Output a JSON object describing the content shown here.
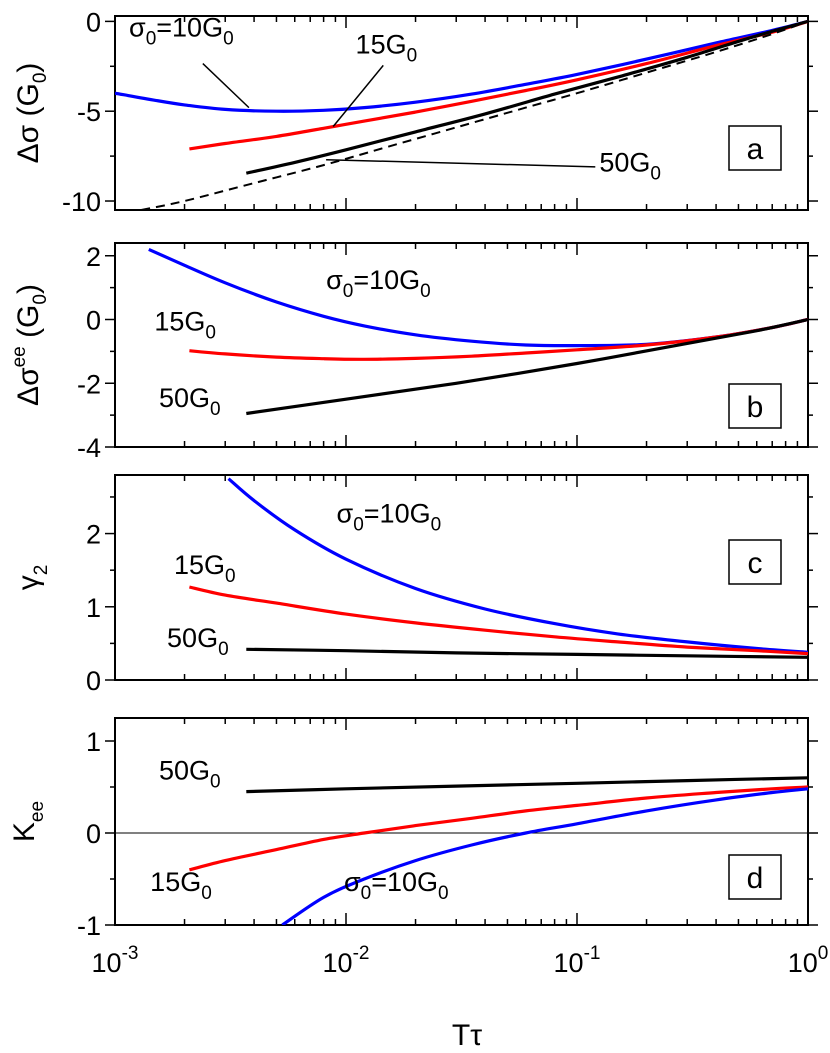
{
  "chart_data": {
    "type": "line",
    "xscale": "log",
    "xlim": [
      0.001,
      1
    ],
    "x_tick_labels": [
      {
        "base": "10",
        "exp": "-3"
      },
      {
        "base": "10",
        "exp": "-2"
      },
      {
        "base": "10",
        "exp": "-1"
      },
      {
        "base": "10",
        "exp": "0"
      }
    ],
    "x_ticks": [
      0.001,
      0.01,
      0.1,
      1
    ],
    "xlabel": "Tτ",
    "colors": {
      "blue": "#0000ff",
      "red": "#ff0000",
      "black": "#000000"
    },
    "panels": [
      {
        "id": "a",
        "letter": "a",
        "ylabel": {
          "main": "Δσ",
          "sup": "",
          "unit": "(G",
          "unit_sub": "0",
          "unit_close": ")"
        },
        "ylim": [
          -10.5,
          0.3
        ],
        "y_ticks": [
          0,
          -5,
          -10
        ],
        "y_tick_labels": [
          "0",
          "-5",
          "-10"
        ],
        "series": [
          {
            "color": "blue",
            "dash": false,
            "x": [
              0.001,
              0.0015,
              0.002,
              0.003,
              0.005,
              0.008,
              0.012,
              0.02,
              0.035,
              0.06,
              0.1,
              0.2,
              0.4,
              0.7,
              1.0
            ],
            "y": [
              -4.0,
              -4.4,
              -4.65,
              -4.9,
              -5.0,
              -4.95,
              -4.8,
              -4.5,
              -4.05,
              -3.5,
              -2.95,
              -2.1,
              -1.2,
              -0.5,
              0.0
            ]
          },
          {
            "color": "red",
            "dash": false,
            "x": [
              0.0021,
              0.003,
              0.005,
              0.008,
              0.012,
              0.02,
              0.035,
              0.06,
              0.1,
              0.2,
              0.4,
              0.7,
              1.0
            ],
            "y": [
              -7.1,
              -6.8,
              -6.4,
              -5.95,
              -5.55,
              -5.05,
              -4.45,
              -3.85,
              -3.25,
              -2.35,
              -1.35,
              -0.6,
              0.0
            ]
          },
          {
            "color": "black",
            "dash": false,
            "x": [
              0.0037,
              0.006,
              0.01,
              0.02,
              0.04,
              0.08,
              0.15,
              0.3,
              0.6,
              1.0
            ],
            "y": [
              -8.45,
              -7.85,
              -7.15,
              -6.15,
              -5.15,
              -4.05,
              -3.1,
              -2.0,
              -0.8,
              0.0
            ]
          },
          {
            "color": "black",
            "dash": true,
            "x": [
              0.0013,
              0.002,
              0.004,
              0.008,
              0.015,
              0.03,
              0.06,
              0.1,
              0.2,
              0.4,
              0.7,
              1.0
            ],
            "y": [
              -10.5,
              -10.0,
              -9.0,
              -8.0,
              -7.0,
              -5.9,
              -4.8,
              -4.0,
              -2.85,
              -1.7,
              -0.7,
              0.0
            ]
          }
        ],
        "annotations": [
          {
            "main": "σ",
            "sub1": "0",
            "rest": "=10G",
            "sub2": "0",
            "x": 0.00115,
            "y": -0.85
          },
          {
            "main": "",
            "sub1": "",
            "rest": "15G",
            "sub2": "0",
            "x": 0.011,
            "y": -1.8
          },
          {
            "main": "",
            "sub1": "",
            "rest": "50G",
            "sub2": "0",
            "x": 0.125,
            "y": -8.35
          }
        ],
        "leaders": [
          {
            "x1": 0.0024,
            "y1": -2.35,
            "x2": 0.0038,
            "y2": -4.8
          },
          {
            "x1": 0.0145,
            "y1": -2.45,
            "x2": 0.0088,
            "y2": -5.85
          },
          {
            "x1": 0.12,
            "y1": -8.1,
            "x2": 0.0082,
            "y2": -7.7
          }
        ]
      },
      {
        "id": "b",
        "letter": "b",
        "ylabel": {
          "main": "Δσ",
          "sup": "ee",
          "unit": "(G",
          "unit_sub": "0",
          "unit_close": ")"
        },
        "ylim": [
          -4,
          2.4
        ],
        "y_ticks": [
          2,
          0,
          -2,
          -4
        ],
        "y_tick_labels": [
          "2",
          "0",
          "-2",
          "-4"
        ],
        "series": [
          {
            "color": "blue",
            "dash": false,
            "x": [
              0.0014,
              0.002,
              0.003,
              0.005,
              0.008,
              0.012,
              0.02,
              0.035,
              0.06,
              0.1,
              0.2,
              0.4,
              0.7,
              1.0
            ],
            "y": [
              2.2,
              1.7,
              1.15,
              0.55,
              0.1,
              -0.2,
              -0.48,
              -0.68,
              -0.8,
              -0.82,
              -0.78,
              -0.55,
              -0.25,
              0.0
            ]
          },
          {
            "color": "red",
            "dash": false,
            "x": [
              0.0021,
              0.003,
              0.005,
              0.008,
              0.012,
              0.02,
              0.035,
              0.06,
              0.1,
              0.2,
              0.4,
              0.7,
              1.0
            ],
            "y": [
              -0.98,
              -1.08,
              -1.18,
              -1.23,
              -1.25,
              -1.22,
              -1.15,
              -1.05,
              -0.95,
              -0.8,
              -0.55,
              -0.25,
              0.0
            ]
          },
          {
            "color": "black",
            "dash": false,
            "x": [
              0.0037,
              0.01,
              0.03,
              0.1,
              0.3,
              0.6,
              1.0
            ],
            "y": [
              -2.95,
              -2.5,
              -2.0,
              -1.38,
              -0.75,
              -0.35,
              0.0
            ]
          }
        ],
        "annotations": [
          {
            "main": "σ",
            "sub1": "0",
            "rest": "=10G",
            "sub2": "0",
            "x": 0.0082,
            "y": 0.95
          },
          {
            "main": "",
            "sub1": "",
            "rest": "15G",
            "sub2": "0",
            "x": 0.00148,
            "y": -0.35
          },
          {
            "main": "",
            "sub1": "",
            "rest": "50G",
            "sub2": "0",
            "x": 0.00155,
            "y": -2.75
          }
        ],
        "leaders": []
      },
      {
        "id": "c",
        "letter": "c",
        "ylabel": {
          "main": "γ",
          "sup": "",
          "unit": "",
          "unit_sub": "2",
          "unit_close": "",
          "sub_only": true
        },
        "ylim": [
          0,
          2.8
        ],
        "y_ticks": [
          2,
          1,
          0
        ],
        "y_tick_labels": [
          "2",
          "1",
          "0"
        ],
        "series": [
          {
            "color": "blue",
            "dash": false,
            "x": [
              0.0031,
              0.004,
              0.006,
              0.01,
              0.02,
              0.04,
              0.08,
              0.15,
              0.3,
              0.6,
              1.0
            ],
            "y": [
              2.75,
              2.45,
              2.05,
              1.65,
              1.25,
              0.97,
              0.77,
              0.63,
              0.52,
              0.43,
              0.38
            ]
          },
          {
            "color": "red",
            "dash": false,
            "x": [
              0.0021,
              0.003,
              0.005,
              0.01,
              0.02,
              0.04,
              0.08,
              0.15,
              0.3,
              0.6,
              1.0
            ],
            "y": [
              1.27,
              1.16,
              1.05,
              0.9,
              0.78,
              0.68,
              0.59,
              0.52,
              0.45,
              0.4,
              0.36
            ]
          },
          {
            "color": "black",
            "dash": false,
            "x": [
              0.0037,
              0.01,
              0.03,
              0.1,
              0.3,
              1.0
            ],
            "y": [
              0.42,
              0.4,
              0.37,
              0.35,
              0.33,
              0.31
            ]
          }
        ],
        "annotations": [
          {
            "main": "σ",
            "sub1": "0",
            "rest": "=10G",
            "sub2": "0",
            "x": 0.0091,
            "y": 2.15
          },
          {
            "main": "",
            "sub1": "",
            "rest": "15G",
            "sub2": "0",
            "x": 0.0018,
            "y": 1.45
          },
          {
            "main": "",
            "sub1": "",
            "rest": "50G",
            "sub2": "0",
            "x": 0.00168,
            "y": 0.45
          }
        ],
        "leaders": []
      },
      {
        "id": "d",
        "letter": "d",
        "ylabel": {
          "main": "K",
          "sup": "",
          "unit": "",
          "unit_sub": "ee",
          "unit_close": "",
          "sub_only": true
        },
        "ylim": [
          -1,
          1.25
        ],
        "y_ticks": [
          1,
          0,
          -1
        ],
        "y_tick_labels": [
          "1",
          "0",
          "-1"
        ],
        "zero_line": true,
        "series": [
          {
            "color": "black",
            "dash": false,
            "x": [
              0.0037,
              0.01,
              0.03,
              0.1,
              0.3,
              1.0
            ],
            "y": [
              0.45,
              0.48,
              0.51,
              0.54,
              0.57,
              0.6
            ]
          },
          {
            "color": "red",
            "dash": false,
            "x": [
              0.0021,
              0.003,
              0.005,
              0.008,
              0.012,
              0.02,
              0.035,
              0.06,
              0.1,
              0.2,
              0.4,
              0.7,
              1.0
            ],
            "y": [
              -0.4,
              -0.3,
              -0.18,
              -0.07,
              0.0,
              0.08,
              0.16,
              0.24,
              0.3,
              0.38,
              0.44,
              0.48,
              0.5
            ]
          },
          {
            "color": "blue",
            "dash": false,
            "x": [
              0.0053,
              0.008,
              0.012,
              0.02,
              0.035,
              0.06,
              0.1,
              0.2,
              0.4,
              0.7,
              1.0
            ],
            "y": [
              -1.0,
              -0.7,
              -0.5,
              -0.3,
              -0.13,
              0.0,
              0.1,
              0.24,
              0.36,
              0.44,
              0.48
            ]
          }
        ],
        "annotations": [
          {
            "main": "",
            "sub1": "",
            "rest": "50G",
            "sub2": "0",
            "x": 0.00155,
            "y": 0.58
          },
          {
            "main": "",
            "sub1": "",
            "rest": "15G",
            "sub2": "0",
            "x": 0.00142,
            "y": -0.63
          },
          {
            "main": "σ",
            "sub1": "0",
            "rest": "=10G",
            "sub2": "0",
            "x": 0.0098,
            "y": -0.63
          }
        ],
        "leaders": []
      }
    ]
  }
}
